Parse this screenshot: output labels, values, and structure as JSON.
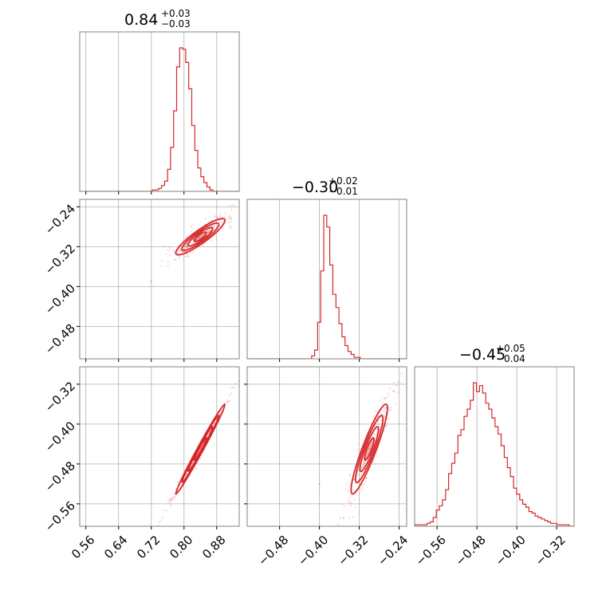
{
  "chart_data": {
    "type": "corner",
    "color": "#d62728",
    "parameters": [
      {
        "median": "0.84",
        "plus": "+0.03",
        "minus": "−0.03",
        "range": [
          0.545,
          0.935
        ]
      },
      {
        "median": "−0.30",
        "plus": "+0.02",
        "minus": "−0.01",
        "range": [
          -0.545,
          -0.225
        ]
      },
      {
        "median": "−0.45",
        "plus": "+0.05",
        "minus": "−0.04",
        "range": [
          -0.605,
          -0.285
        ]
      }
    ],
    "ticks": [
      {
        "values": [
          0.56,
          0.64,
          0.72,
          0.8,
          0.88
        ],
        "labels": [
          "0.56",
          "0.64",
          "0.72",
          "0.80",
          "0.88"
        ]
      },
      {
        "values": [
          -0.48,
          -0.4,
          -0.32,
          -0.24
        ],
        "labels": [
          "−0.48",
          "−0.40",
          "−0.32",
          "−0.24"
        ]
      },
      {
        "values": [
          -0.56,
          -0.48,
          -0.4,
          -0.32
        ],
        "labels": [
          "−0.56",
          "−0.48",
          "−0.40",
          "−0.32"
        ]
      }
    ],
    "histograms": [
      {
        "start": 0.56,
        "step": 0.0074,
        "counts": [
          0,
          0,
          0,
          0,
          0,
          0,
          0,
          0,
          0,
          0,
          0,
          0,
          0,
          0,
          0,
          0,
          0,
          0,
          0,
          0,
          0,
          0,
          1,
          1,
          2,
          4,
          7,
          15,
          30,
          55,
          85,
          98,
          97,
          88,
          70,
          45,
          28,
          16,
          10,
          6,
          3,
          1,
          0,
          0,
          0,
          0,
          0,
          0,
          0,
          0,
          0,
          0,
          0,
          0
        ]
      },
      {
        "start": -0.55,
        "step": 0.0061,
        "counts": [
          0,
          0,
          0,
          0,
          0,
          0,
          0,
          0,
          0,
          0,
          0,
          0,
          0,
          0,
          0,
          0,
          0,
          0,
          0,
          0,
          0,
          0,
          2,
          6,
          25,
          60,
          98,
          90,
          64,
          44,
          35,
          24,
          15,
          9,
          5,
          3,
          1,
          1,
          0,
          0,
          0,
          0,
          0,
          0,
          0,
          0,
          0,
          0,
          0,
          0,
          0,
          0,
          0
        ]
      },
      {
        "start": -0.605,
        "step": 0.0062,
        "counts": [
          1,
          1,
          1,
          1,
          2,
          3,
          6,
          11,
          14,
          18,
          25,
          36,
          43,
          50,
          62,
          66,
          75,
          80,
          86,
          98,
          92,
          96,
          91,
          84,
          80,
          74,
          68,
          63,
          55,
          47,
          40,
          34,
          26,
          22,
          18,
          15,
          13,
          10,
          9,
          7,
          6,
          5,
          4,
          3,
          2,
          2,
          1,
          1,
          1,
          1,
          0,
          0
        ]
      }
    ],
    "pairs": [
      {
        "x": 0,
        "y": 1,
        "mean": [
          0.84,
          -0.3
        ],
        "sd": [
          0.03,
          0.018
        ],
        "rho": 0.92
      },
      {
        "x": 0,
        "y": 2,
        "mean": [
          0.84,
          -0.45
        ],
        "sd": [
          0.03,
          0.045
        ],
        "rho": 0.995
      },
      {
        "x": 1,
        "y": 2,
        "mean": [
          -0.3,
          -0.45
        ],
        "sd": [
          0.018,
          0.045
        ],
        "rho": 0.93
      }
    ],
    "outliers": [
      {
        "x": 0,
        "y": 1,
        "px": 0.72,
        "py": -0.39
      },
      {
        "x": 1,
        "y": 2,
        "px": -0.4,
        "py": -0.52
      }
    ]
  }
}
